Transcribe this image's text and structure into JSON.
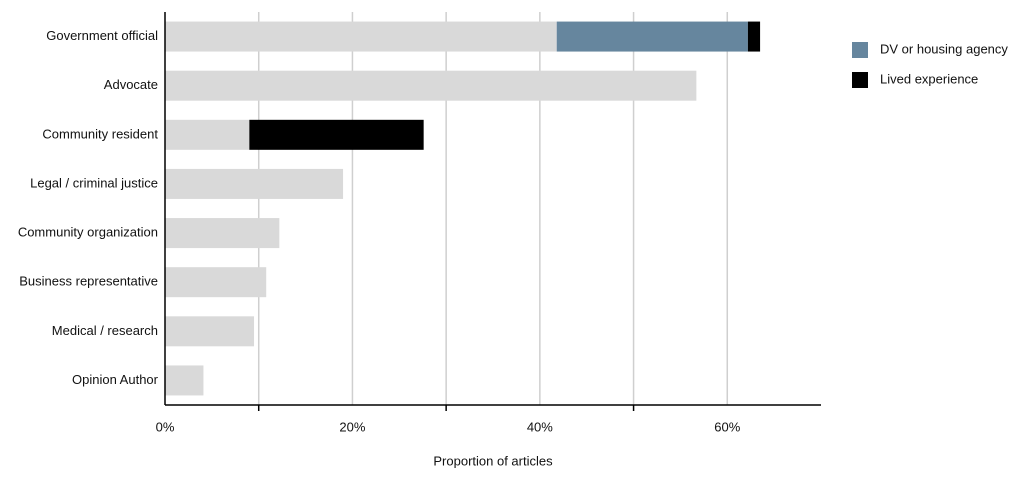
{
  "chart_data": {
    "type": "stacked-bar",
    "orientation": "horizontal",
    "x_label": "Proportion of articles",
    "categories": [
      "Government official",
      "Advocate",
      "Community resident",
      "Legal / criminal justice",
      "Community organization",
      "Business representative",
      "Medical / research",
      "Opinion Author"
    ],
    "series": [
      {
        "color": "#d9d9d9",
        "values": [
          41.8,
          56.7,
          9.0,
          19.0,
          12.2,
          10.8,
          9.5,
          4.1
        ]
      },
      {
        "name": "DV or housing agency",
        "color": "#66869e",
        "values": [
          20.4,
          null,
          null,
          null,
          null,
          null,
          null,
          null
        ]
      },
      {
        "name": "Lived experience",
        "color": "#000000",
        "values": [
          1.3,
          null,
          18.6,
          null,
          null,
          null,
          null,
          null
        ]
      }
    ],
    "xlim": [
      0,
      70
    ],
    "xticks": [
      {
        "value": 0,
        "label": "0%"
      },
      {
        "value": 20,
        "label": "20%"
      },
      {
        "value": 40,
        "label": "40%"
      },
      {
        "value": 60,
        "label": "60%"
      }
    ],
    "minor_xticks": [
      10,
      30,
      50
    ],
    "grid": true,
    "legend": "right"
  }
}
